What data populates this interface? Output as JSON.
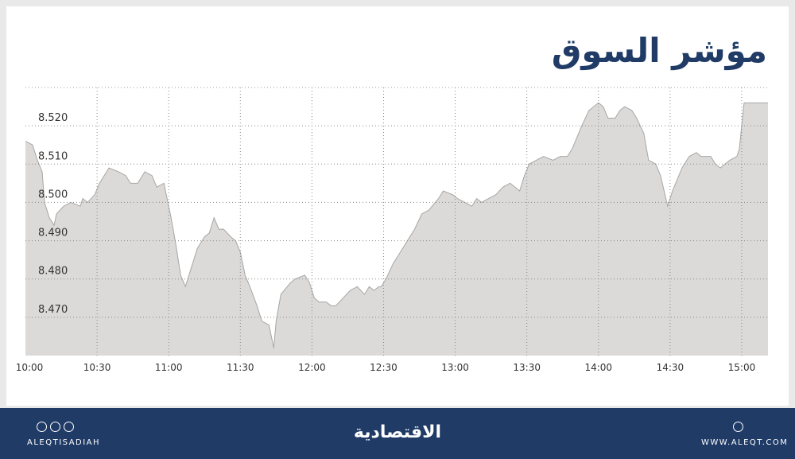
{
  "chart_data": {
    "type": "area",
    "title": "مؤشر السوق",
    "color": "#dcdad9",
    "line_color": "#a8a6a5",
    "grid": true,
    "x": [
      600,
      603,
      605,
      607,
      608,
      610,
      612,
      613,
      616,
      619,
      623,
      624,
      626,
      629,
      631,
      635,
      639,
      642,
      644,
      647,
      650,
      653,
      655,
      658,
      659,
      661,
      663,
      665,
      667,
      669,
      672,
      675,
      677,
      679,
      681,
      683,
      686,
      688,
      690,
      692,
      694,
      697,
      699,
      702,
      704,
      705,
      707,
      711,
      713,
      717,
      719,
      721,
      723,
      726,
      728,
      730,
      733,
      736,
      739,
      742,
      744,
      746,
      748,
      749,
      751,
      754,
      757,
      760,
      763,
      766,
      769,
      773,
      775,
      779,
      781,
      784,
      787,
      789,
      791,
      794,
      797,
      800,
      803,
      805,
      807,
      809,
      811,
      814,
      817,
      821,
      824,
      827,
      829,
      833,
      836,
      840,
      842,
      844,
      847,
      849,
      851,
      854,
      856,
      859,
      861,
      864,
      866,
      869,
      871,
      875,
      878,
      881,
      883,
      887,
      889,
      891,
      895,
      898,
      899,
      901,
      911
    ],
    "values": [
      8.516,
      8.515,
      8.511,
      8.508,
      8.5,
      8.496,
      8.494,
      8.497,
      8.499,
      8.5,
      8.499,
      8.501,
      8.5,
      8.502,
      8.505,
      8.509,
      8.508,
      8.507,
      8.505,
      8.505,
      8.508,
      8.507,
      8.504,
      8.505,
      8.502,
      8.496,
      8.489,
      8.481,
      8.478,
      8.482,
      8.488,
      8.491,
      8.492,
      8.496,
      8.493,
      8.493,
      8.491,
      8.49,
      8.487,
      8.481,
      8.478,
      8.473,
      8.469,
      8.468,
      8.462,
      8.469,
      8.476,
      8.479,
      8.48,
      8.481,
      8.479,
      8.475,
      8.474,
      8.474,
      8.473,
      8.473,
      8.475,
      8.477,
      8.478,
      8.476,
      8.478,
      8.477,
      8.478,
      8.478,
      8.48,
      8.484,
      8.487,
      8.49,
      8.493,
      8.497,
      8.498,
      8.501,
      8.503,
      8.502,
      8.501,
      8.5,
      8.499,
      8.501,
      8.5,
      8.501,
      8.502,
      8.504,
      8.505,
      8.504,
      8.503,
      8.507,
      8.51,
      8.511,
      8.512,
      8.511,
      8.512,
      8.512,
      8.514,
      8.52,
      8.524,
      8.526,
      8.525,
      8.522,
      8.522,
      8.524,
      8.525,
      8.524,
      8.522,
      8.518,
      8.511,
      8.51,
      8.507,
      8.499,
      8.503,
      8.509,
      8.512,
      8.513,
      8.512,
      8.512,
      8.51,
      8.509,
      8.511,
      8.512,
      8.514,
      8.526,
      8.526
    ],
    "xlim": [
      600,
      911
    ],
    "xticks": [
      {
        "value": 600,
        "label": "10:00"
      },
      {
        "value": 630,
        "label": "10:30"
      },
      {
        "value": 660,
        "label": "11:00"
      },
      {
        "value": 690,
        "label": "11:30"
      },
      {
        "value": 720,
        "label": "12:00"
      },
      {
        "value": 750,
        "label": "12:30"
      },
      {
        "value": 780,
        "label": "13:00"
      },
      {
        "value": 810,
        "label": "13:30"
      },
      {
        "value": 840,
        "label": "14:00"
      },
      {
        "value": 870,
        "label": "14:30"
      },
      {
        "value": 900,
        "label": "15:00"
      }
    ],
    "ylim": [
      8.46,
      8.53
    ],
    "yticks": [
      {
        "value": 8.47,
        "label": "8.470"
      },
      {
        "value": 8.48,
        "label": "8.480"
      },
      {
        "value": 8.49,
        "label": "8.490"
      },
      {
        "value": 8.5,
        "label": "8.500"
      },
      {
        "value": 8.51,
        "label": "8.510"
      },
      {
        "value": 8.52,
        "label": "8.520"
      }
    ]
  },
  "footer": {
    "handle": "ALEQTISADIAH",
    "logo": "الاقتصادية",
    "website": "WWW.ALEQT.COM"
  }
}
